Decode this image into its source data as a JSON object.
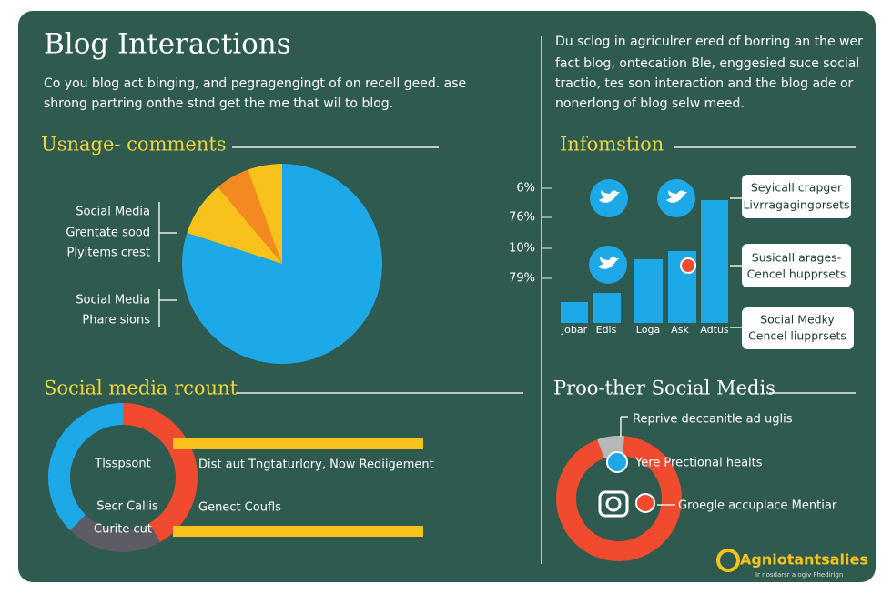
{
  "header": {
    "title": "Blog Interactions",
    "description": [
      "Co you blog act binging, and pegragengingt of on recell geed. ase",
      "shrong partring onthe stnd get the me that wil to blog."
    ]
  },
  "intro": [
    "Du sclog in agriculrer ered of borring an the wer",
    "fact blog, ontecation Ble, enggesied suce social",
    "tractio, tes son interaction and the blog ade or",
    "nonerlong of blog selw meed."
  ],
  "sections": [
    {
      "heading": "Usnage- comments",
      "labels": [
        "Social Media",
        "Grentate sood",
        "Plyitems crest",
        "Social Media",
        "Phare sions"
      ]
    },
    {
      "heading": "Infomstion",
      "axis_labels": [
        "6%",
        "76%",
        "10%",
        "79%"
      ],
      "bar_labels": [
        "Jobar",
        "Edis",
        "Loga",
        "Ask",
        "Adtus"
      ],
      "callouts": [
        [
          "Seyicall crapger",
          "Livrragagingprsets"
        ],
        [
          "Susicall arages-",
          "Cencel hupprsets"
        ],
        [
          "Social Medky",
          "Cencel liupprsets"
        ]
      ]
    },
    {
      "heading": "Social media rcount",
      "labels": [
        "Tlsspsont",
        "Secr Callis",
        "Curite cut",
        "Dist aut Tngtaturlory, Now Rediigement",
        "Genect Coufls"
      ]
    },
    {
      "heading": "Proo-ther Social Medis",
      "labels": [
        "Reprive deccanitle ad uglis",
        "Yere Prectional healts",
        "Groegle accuplace Mentiar"
      ]
    }
  ],
  "footer": {
    "logo": "Agniotantsalies",
    "tagline": "Ir nosdarsr a ogiv Fhedirign"
  }
}
